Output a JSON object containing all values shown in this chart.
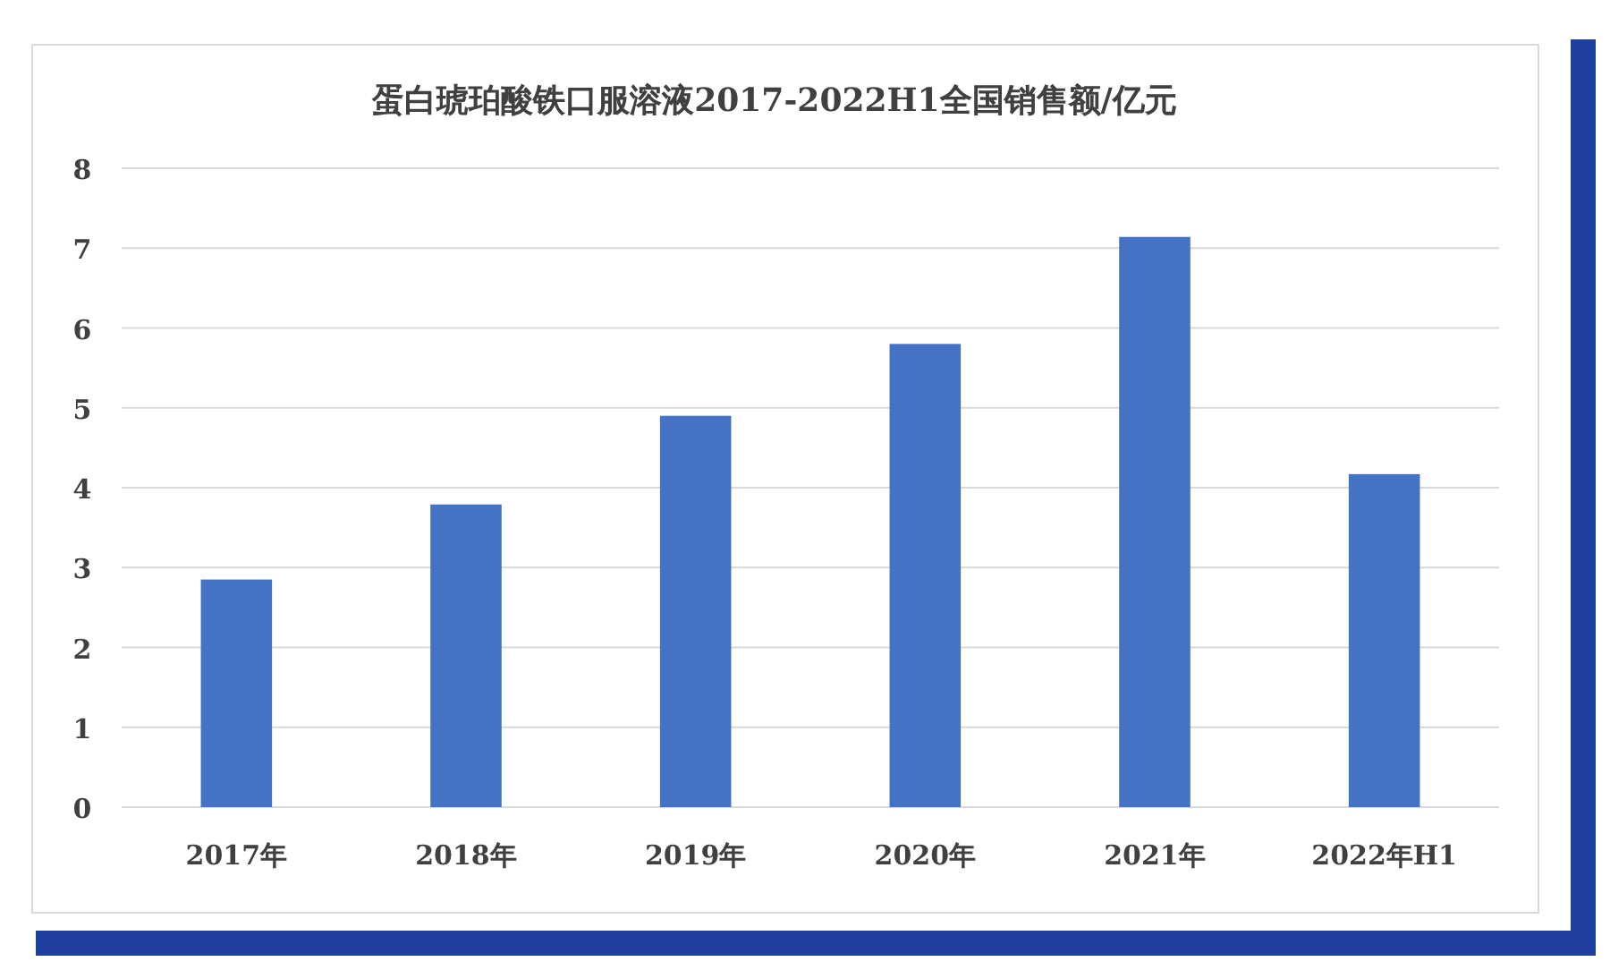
{
  "chart_data": {
    "type": "bar",
    "title": "蛋白琥珀酸铁口服溶液2017-2022H1全国销售额/亿元",
    "categories": [
      "2017年",
      "2018年",
      "2019年",
      "2020年",
      "2021年",
      "2022年H1"
    ],
    "values": [
      2.85,
      3.79,
      4.9,
      5.8,
      7.14,
      4.17
    ],
    "color": "#4472c4",
    "ylim": [
      0,
      8
    ],
    "yticks": [
      0,
      1,
      2,
      3,
      4,
      5,
      6,
      7,
      8
    ],
    "grid": "y",
    "legend": false
  }
}
